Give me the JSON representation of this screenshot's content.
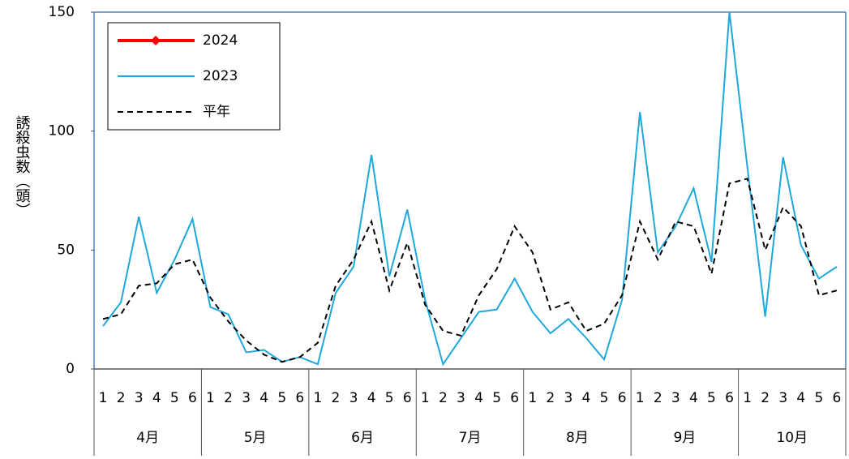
{
  "chart_data": {
    "type": "line",
    "ylabel": "誘殺虫数（頭）",
    "categories": [
      "1",
      "2",
      "3",
      "4",
      "5",
      "6",
      "1",
      "2",
      "3",
      "4",
      "5",
      "6",
      "1",
      "2",
      "3",
      "4",
      "5",
      "6",
      "1",
      "2",
      "3",
      "4",
      "5",
      "6",
      "1",
      "2",
      "3",
      "4",
      "5",
      "6",
      "1",
      "2",
      "3",
      "4",
      "5",
      "6",
      "1",
      "2",
      "3",
      "4",
      "5",
      "6"
    ],
    "months": [
      "4月",
      "5月",
      "6月",
      "7月",
      "8月",
      "9月",
      "10月"
    ],
    "series": [
      {
        "name": "2024",
        "color": "#ff0000",
        "style": "solid-marker",
        "values": [
          null,
          null,
          null,
          null,
          null,
          null,
          null,
          null,
          null,
          null,
          null,
          null,
          null,
          null,
          null,
          null,
          null,
          null,
          null,
          null,
          null,
          null,
          null,
          null,
          null,
          null,
          null,
          null,
          null,
          null,
          null,
          null,
          null,
          null,
          null,
          null,
          null,
          null,
          null,
          null,
          null,
          null
        ]
      },
      {
        "name": "2023",
        "color": "#1fa8dc",
        "style": "solid",
        "values": [
          18,
          28,
          64,
          32,
          46,
          63,
          26,
          23,
          7,
          8,
          3,
          5,
          2,
          32,
          43,
          90,
          39,
          67,
          29,
          2,
          13,
          24,
          25,
          38,
          24,
          15,
          21,
          13,
          4,
          29,
          108,
          49,
          60,
          76,
          45,
          150,
          85,
          22,
          89,
          52,
          38,
          43
        ]
      },
      {
        "name": "平年",
        "color": "#000000",
        "style": "dashed",
        "values": [
          21,
          23,
          35,
          36,
          44,
          46,
          30,
          20,
          12,
          6,
          3,
          5,
          11,
          35,
          46,
          62,
          33,
          53,
          27,
          16,
          14,
          31,
          42,
          60,
          49,
          25,
          28,
          16,
          19,
          31,
          62,
          46,
          62,
          60,
          40,
          78,
          80,
          50,
          68,
          60,
          31,
          33
        ]
      }
    ],
    "ylim": [
      0,
      150
    ],
    "yticks": [
      0,
      50,
      100,
      150
    ],
    "legend": "upper-left"
  }
}
